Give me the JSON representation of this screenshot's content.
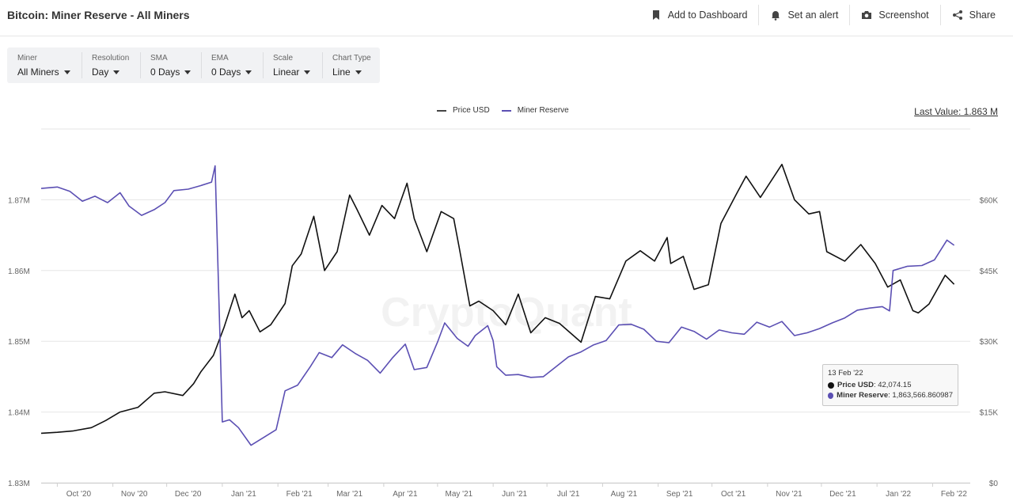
{
  "header": {
    "title": "Bitcoin: Miner Reserve - All Miners",
    "actions": {
      "dashboard": "Add to Dashboard",
      "alert": "Set an alert",
      "screenshot": "Screenshot",
      "share": "Share"
    }
  },
  "filters": [
    {
      "label": "Miner",
      "value": "All Miners"
    },
    {
      "label": "Resolution",
      "value": "Day"
    },
    {
      "label": "SMA",
      "value": "0 Days"
    },
    {
      "label": "EMA",
      "value": "0 Days"
    },
    {
      "label": "Scale",
      "value": "Linear"
    },
    {
      "label": "Chart Type",
      "value": "Line"
    }
  ],
  "last_value": "Last Value: 1.863 M",
  "watermark": "CryptoQuant",
  "tooltip": {
    "date": "13 Feb '22",
    "price_label": "Price USD",
    "price_value": ": 42,074.15",
    "reserve_label": "Miner Reserve",
    "reserve_value": ": 1,863,566.860987"
  },
  "colors": {
    "price": "#111111",
    "reserve": "#5b4fb3",
    "grid": "#e6e6e6",
    "axis_text": "#666666"
  },
  "chart_data": {
    "type": "line",
    "title": "Bitcoin: Miner Reserve - All Miners",
    "legend": [
      "Price USD",
      "Miner Reserve"
    ],
    "legend_position": "top-center",
    "grid": true,
    "x_range": [
      "2020-09-22",
      "2022-02-22"
    ],
    "x_ticks": [
      {
        "date": "2020-10-01",
        "label": "Oct '20"
      },
      {
        "date": "2020-11-01",
        "label": "Nov '20"
      },
      {
        "date": "2020-12-01",
        "label": "Dec '20"
      },
      {
        "date": "2021-01-01",
        "label": "Jan '21"
      },
      {
        "date": "2021-02-01",
        "label": "Feb '21"
      },
      {
        "date": "2021-03-01",
        "label": "Mar '21"
      },
      {
        "date": "2021-04-01",
        "label": "Apr '21"
      },
      {
        "date": "2021-05-01",
        "label": "May '21"
      },
      {
        "date": "2021-06-01",
        "label": "Jun '21"
      },
      {
        "date": "2021-07-01",
        "label": "Jul '21"
      },
      {
        "date": "2021-08-01",
        "label": "Aug '21"
      },
      {
        "date": "2021-09-01",
        "label": "Sep '21"
      },
      {
        "date": "2021-10-01",
        "label": "Oct '21"
      },
      {
        "date": "2021-11-01",
        "label": "Nov '21"
      },
      {
        "date": "2021-12-01",
        "label": "Dec '21"
      },
      {
        "date": "2022-01-01",
        "label": "Jan '22"
      },
      {
        "date": "2022-02-01",
        "label": "Feb '22"
      }
    ],
    "left_axis": {
      "min": 1830000,
      "max": 1880000,
      "ticks": [
        {
          "v": 1830000,
          "label": "1.83M"
        },
        {
          "v": 1840000,
          "label": "1.84M"
        },
        {
          "v": 1850000,
          "label": "1.85M"
        },
        {
          "v": 1860000,
          "label": "1.86M"
        },
        {
          "v": 1870000,
          "label": "1.87M"
        },
        {
          "v": 1880000,
          "label": ""
        }
      ]
    },
    "right_axis": {
      "min": 0,
      "max": 75000,
      "ticks": [
        {
          "v": 0,
          "label": "$0"
        },
        {
          "v": 15000,
          "label": "$15K"
        },
        {
          "v": 30000,
          "label": "$30K"
        },
        {
          "v": 45000,
          "label": "$45K"
        },
        {
          "v": 60000,
          "label": "$60K"
        },
        {
          "v": 75000,
          "label": ""
        }
      ]
    },
    "series": [
      {
        "name": "Price USD",
        "axis": "right",
        "color": "#111111",
        "points": [
          [
            "2020-09-22",
            10500
          ],
          [
            "2020-10-01",
            10700
          ],
          [
            "2020-10-10",
            11000
          ],
          [
            "2020-10-20",
            11700
          ],
          [
            "2020-10-28",
            13200
          ],
          [
            "2020-11-05",
            15000
          ],
          [
            "2020-11-15",
            16000
          ],
          [
            "2020-11-24",
            19000
          ],
          [
            "2020-11-30",
            19300
          ],
          [
            "2020-12-10",
            18500
          ],
          [
            "2020-12-16",
            21000
          ],
          [
            "2020-12-20",
            23500
          ],
          [
            "2020-12-27",
            27000
          ],
          [
            "2021-01-02",
            33000
          ],
          [
            "2021-01-08",
            40000
          ],
          [
            "2021-01-12",
            35000
          ],
          [
            "2021-01-16",
            36500
          ],
          [
            "2021-01-22",
            32000
          ],
          [
            "2021-01-28",
            33500
          ],
          [
            "2021-02-05",
            38000
          ],
          [
            "2021-02-09",
            46000
          ],
          [
            "2021-02-14",
            48500
          ],
          [
            "2021-02-21",
            56500
          ],
          [
            "2021-02-27",
            45000
          ],
          [
            "2021-03-06",
            49000
          ],
          [
            "2021-03-13",
            61000
          ],
          [
            "2021-03-17",
            58000
          ],
          [
            "2021-03-24",
            52500
          ],
          [
            "2021-03-31",
            58800
          ],
          [
            "2021-04-07",
            56000
          ],
          [
            "2021-04-14",
            63500
          ],
          [
            "2021-04-18",
            56000
          ],
          [
            "2021-04-25",
            49000
          ],
          [
            "2021-05-03",
            57500
          ],
          [
            "2021-05-10",
            56000
          ],
          [
            "2021-05-13",
            50000
          ],
          [
            "2021-05-19",
            37500
          ],
          [
            "2021-05-24",
            38500
          ],
          [
            "2021-06-01",
            36500
          ],
          [
            "2021-06-08",
            33500
          ],
          [
            "2021-06-15",
            40000
          ],
          [
            "2021-06-22",
            31800
          ],
          [
            "2021-06-30",
            35000
          ],
          [
            "2021-07-08",
            33800
          ],
          [
            "2021-07-20",
            29800
          ],
          [
            "2021-07-28",
            39500
          ],
          [
            "2021-08-05",
            39000
          ],
          [
            "2021-08-14",
            47000
          ],
          [
            "2021-08-22",
            49200
          ],
          [
            "2021-08-30",
            47000
          ],
          [
            "2021-09-06",
            52000
          ],
          [
            "2021-09-08",
            46500
          ],
          [
            "2021-09-15",
            48000
          ],
          [
            "2021-09-21",
            41000
          ],
          [
            "2021-09-29",
            42000
          ],
          [
            "2021-10-06",
            55000
          ],
          [
            "2021-10-15",
            61500
          ],
          [
            "2021-10-20",
            65000
          ],
          [
            "2021-10-28",
            60500
          ],
          [
            "2021-11-09",
            67500
          ],
          [
            "2021-11-16",
            60000
          ],
          [
            "2021-11-24",
            57000
          ],
          [
            "2021-11-30",
            57500
          ],
          [
            "2021-12-04",
            49000
          ],
          [
            "2021-12-14",
            47000
          ],
          [
            "2021-12-23",
            50500
          ],
          [
            "2021-12-31",
            46500
          ],
          [
            "2022-01-07",
            41500
          ],
          [
            "2022-01-14",
            43000
          ],
          [
            "2022-01-21",
            36500
          ],
          [
            "2022-01-24",
            36000
          ],
          [
            "2022-01-30",
            37900
          ],
          [
            "2022-02-08",
            44000
          ],
          [
            "2022-02-13",
            42074
          ]
        ]
      },
      {
        "name": "Miner Reserve",
        "axis": "left",
        "color": "#5b4fb3",
        "points": [
          [
            "2020-09-22",
            1871600
          ],
          [
            "2020-10-01",
            1871800
          ],
          [
            "2020-10-08",
            1871200
          ],
          [
            "2020-10-15",
            1869800
          ],
          [
            "2020-10-22",
            1870500
          ],
          [
            "2020-10-29",
            1869600
          ],
          [
            "2020-11-05",
            1871000
          ],
          [
            "2020-11-10",
            1869100
          ],
          [
            "2020-11-17",
            1867800
          ],
          [
            "2020-11-24",
            1868600
          ],
          [
            "2020-11-30",
            1869600
          ],
          [
            "2020-12-05",
            1871300
          ],
          [
            "2020-12-13",
            1871500
          ],
          [
            "2020-12-20",
            1872000
          ],
          [
            "2020-12-26",
            1872500
          ],
          [
            "2020-12-28",
            1874800
          ],
          [
            "2020-12-31",
            1848000
          ],
          [
            "2021-01-01",
            1838600
          ],
          [
            "2021-01-05",
            1838900
          ],
          [
            "2021-01-10",
            1837800
          ],
          [
            "2021-01-17",
            1835300
          ],
          [
            "2021-01-24",
            1836400
          ],
          [
            "2021-01-31",
            1837500
          ],
          [
            "2021-02-05",
            1843000
          ],
          [
            "2021-02-12",
            1843800
          ],
          [
            "2021-02-19",
            1846400
          ],
          [
            "2021-02-24",
            1848400
          ],
          [
            "2021-03-03",
            1847700
          ],
          [
            "2021-03-09",
            1849500
          ],
          [
            "2021-03-16",
            1848300
          ],
          [
            "2021-03-23",
            1847300
          ],
          [
            "2021-03-30",
            1845500
          ],
          [
            "2021-04-06",
            1847700
          ],
          [
            "2021-04-13",
            1849600
          ],
          [
            "2021-04-18",
            1846000
          ],
          [
            "2021-04-25",
            1846300
          ],
          [
            "2021-05-01",
            1849900
          ],
          [
            "2021-05-05",
            1852600
          ],
          [
            "2021-05-12",
            1850400
          ],
          [
            "2021-05-18",
            1849300
          ],
          [
            "2021-05-22",
            1850800
          ],
          [
            "2021-05-29",
            1852200
          ],
          [
            "2021-06-01",
            1850100
          ],
          [
            "2021-06-03",
            1846400
          ],
          [
            "2021-06-08",
            1845200
          ],
          [
            "2021-06-15",
            1845300
          ],
          [
            "2021-06-22",
            1844900
          ],
          [
            "2021-06-29",
            1845000
          ],
          [
            "2021-07-06",
            1846400
          ],
          [
            "2021-07-13",
            1847800
          ],
          [
            "2021-07-20",
            1848500
          ],
          [
            "2021-07-27",
            1849500
          ],
          [
            "2021-08-03",
            1850100
          ],
          [
            "2021-08-10",
            1852300
          ],
          [
            "2021-08-17",
            1852400
          ],
          [
            "2021-08-24",
            1851700
          ],
          [
            "2021-08-31",
            1850000
          ],
          [
            "2021-09-07",
            1849800
          ],
          [
            "2021-09-14",
            1852000
          ],
          [
            "2021-09-21",
            1851400
          ],
          [
            "2021-09-28",
            1850300
          ],
          [
            "2021-10-05",
            1851600
          ],
          [
            "2021-10-12",
            1851200
          ],
          [
            "2021-10-19",
            1851000
          ],
          [
            "2021-10-26",
            1852700
          ],
          [
            "2021-11-02",
            1852000
          ],
          [
            "2021-11-09",
            1852800
          ],
          [
            "2021-11-16",
            1850800
          ],
          [
            "2021-11-23",
            1851200
          ],
          [
            "2021-11-30",
            1851800
          ],
          [
            "2021-12-07",
            1852600
          ],
          [
            "2021-12-14",
            1853300
          ],
          [
            "2021-12-21",
            1854400
          ],
          [
            "2021-12-28",
            1854700
          ],
          [
            "2022-01-04",
            1854900
          ],
          [
            "2022-01-08",
            1854300
          ],
          [
            "2022-01-10",
            1860000
          ],
          [
            "2022-01-18",
            1860600
          ],
          [
            "2022-01-26",
            1860700
          ],
          [
            "2022-02-02",
            1861500
          ],
          [
            "2022-02-09",
            1864300
          ],
          [
            "2022-02-13",
            1863567
          ]
        ]
      }
    ]
  }
}
